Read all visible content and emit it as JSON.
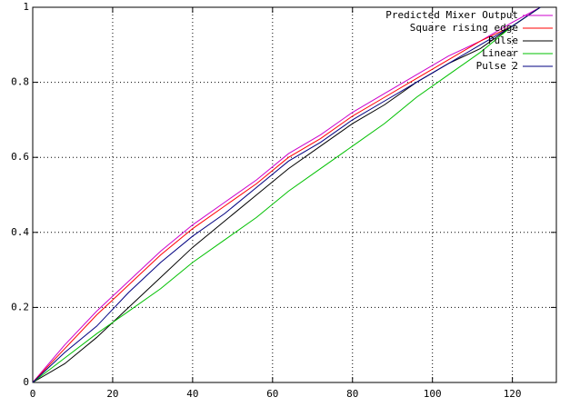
{
  "chart_data": {
    "type": "line",
    "x": [
      0,
      8,
      16,
      24,
      32,
      40,
      48,
      56,
      64,
      72,
      80,
      88,
      96,
      104,
      112,
      120,
      127
    ],
    "series": [
      {
        "name": "Predicted Mixer Output",
        "color": "#cc00cc",
        "values": [
          0,
          0.1,
          0.19,
          0.27,
          0.35,
          0.42,
          0.48,
          0.54,
          0.61,
          0.66,
          0.72,
          0.77,
          0.82,
          0.87,
          0.91,
          0.96,
          1.0
        ]
      },
      {
        "name": "Square rising edge",
        "color": "#ff0000",
        "values": [
          0,
          0.09,
          0.18,
          0.26,
          0.34,
          0.41,
          0.47,
          0.53,
          0.6,
          0.65,
          0.71,
          0.76,
          0.81,
          0.86,
          0.91,
          0.95,
          1.0
        ]
      },
      {
        "name": "Pulse",
        "color": "#000000",
        "values": [
          0,
          0.05,
          0.12,
          0.2,
          0.28,
          0.36,
          0.43,
          0.5,
          0.57,
          0.63,
          0.69,
          0.74,
          0.8,
          0.85,
          0.89,
          0.95,
          1.0
        ]
      },
      {
        "name": "Linear",
        "color": "#00c000",
        "values": [
          0,
          0.065,
          0.13,
          0.19,
          0.25,
          0.32,
          0.38,
          0.44,
          0.51,
          0.57,
          0.63,
          0.69,
          0.76,
          0.82,
          0.88,
          0.95,
          1.0
        ]
      },
      {
        "name": "Pulse 2",
        "color": "#000080",
        "values": [
          0,
          0.08,
          0.15,
          0.24,
          0.32,
          0.39,
          0.45,
          0.52,
          0.59,
          0.64,
          0.7,
          0.75,
          0.8,
          0.85,
          0.9,
          0.95,
          1.0
        ]
      }
    ],
    "xlim": [
      0,
      131
    ],
    "xticks": [
      0,
      20,
      40,
      60,
      80,
      100,
      120
    ],
    "ylim": [
      0,
      1
    ],
    "yticks": [
      0,
      0.2,
      0.4,
      0.6,
      0.8,
      1
    ],
    "grid": true,
    "legend": "top-right"
  }
}
